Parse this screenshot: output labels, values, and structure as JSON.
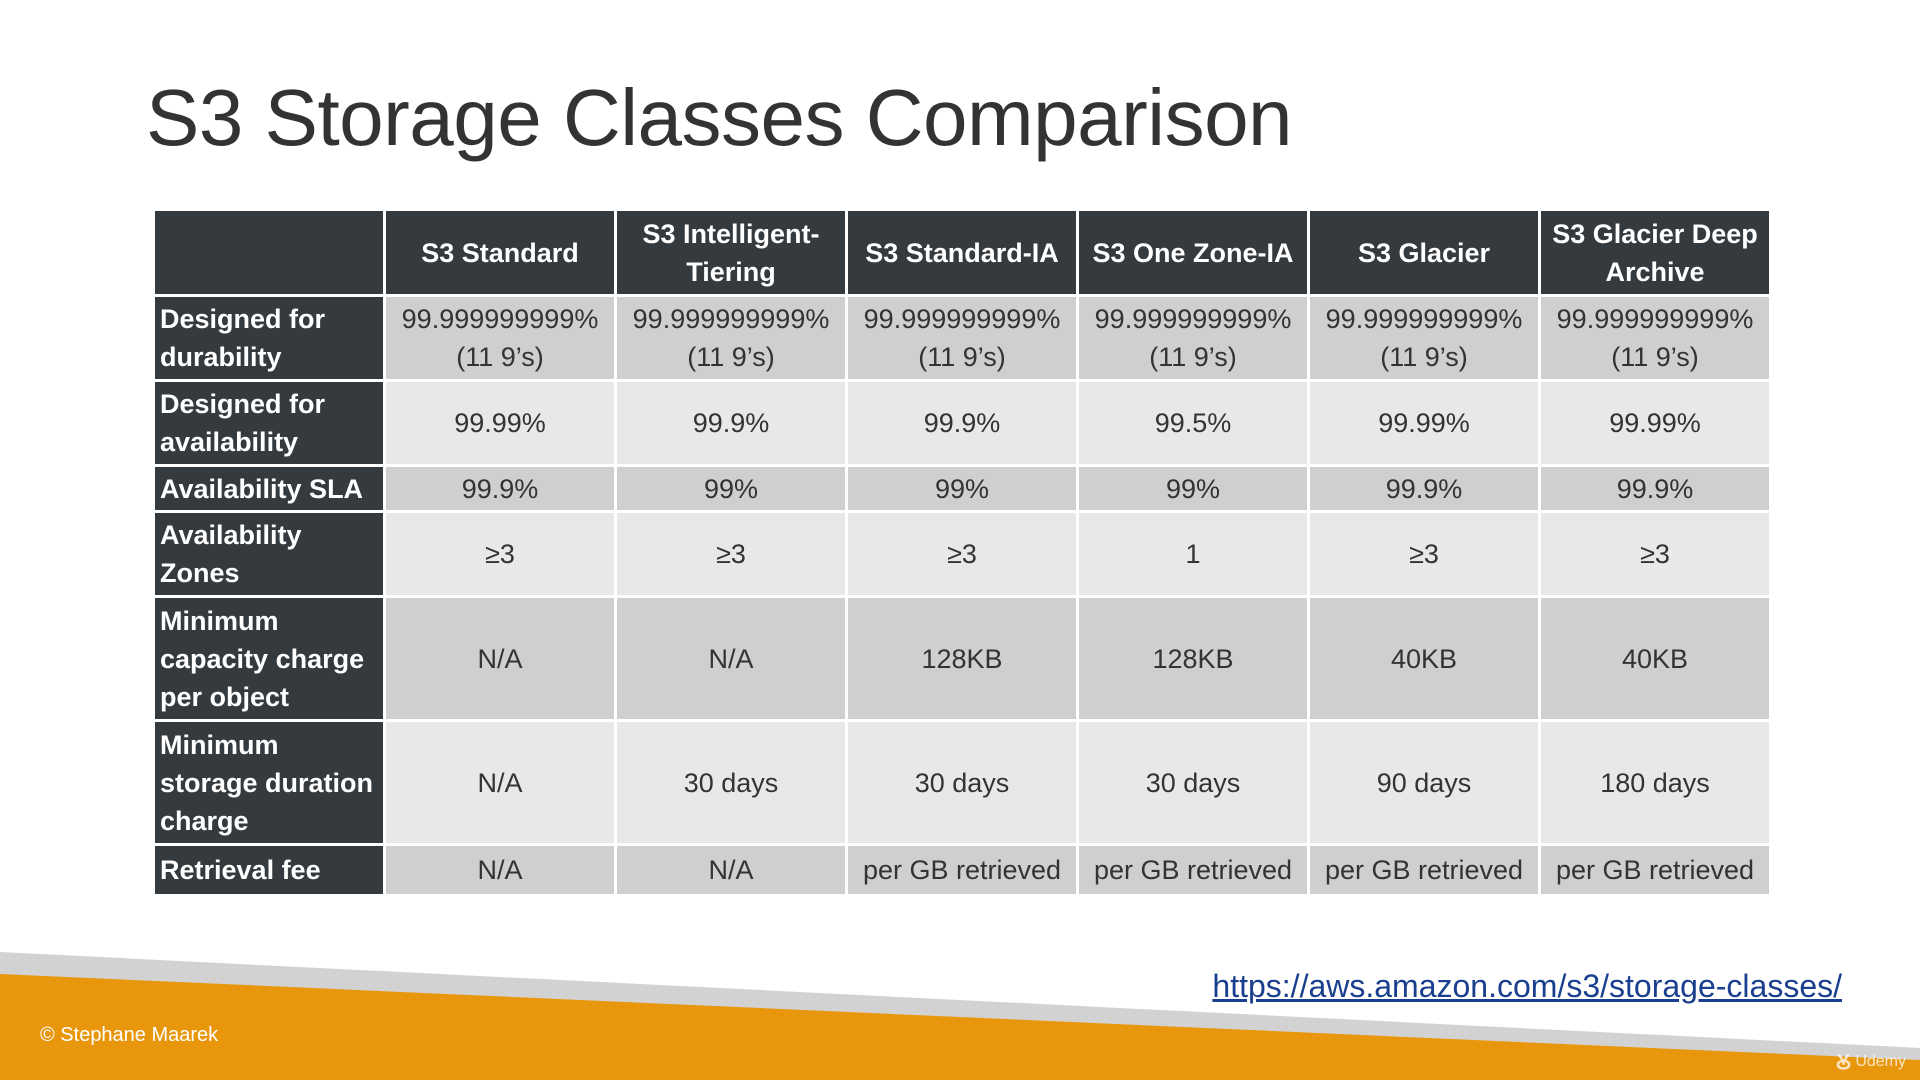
{
  "title": "S3 Storage Classes Comparison",
  "table": {
    "columns": [
      "S3 Standard",
      "S3 Intelligent-Tiering",
      "S3 Standard-IA",
      "S3 One Zone-IA",
      "S3 Glacier",
      "S3 Glacier Deep Archive"
    ],
    "rows": [
      {
        "label": "Designed for durability",
        "cells": [
          "99.999999999% (11 9’s)",
          "99.999999999% (11 9’s)",
          "99.999999999% (11 9’s)",
          "99.999999999% (11 9’s)",
          "99.999999999% (11 9’s)",
          "99.999999999% (11 9’s)"
        ]
      },
      {
        "label": "Designed for availability",
        "cells": [
          "99.99%",
          "99.9%",
          "99.9%",
          "99.5%",
          "99.99%",
          "99.99%"
        ]
      },
      {
        "label": "Availability SLA",
        "cells": [
          "99.9%",
          "99%",
          "99%",
          "99%",
          "99.9%",
          "99.9%"
        ]
      },
      {
        "label": "Availability Zones",
        "cells": [
          "≥3",
          "≥3",
          "≥3",
          "1",
          "≥3",
          "≥3"
        ]
      },
      {
        "label": "Minimum capacity charge per object",
        "cells": [
          "N/A",
          "N/A",
          "128KB",
          "128KB",
          "40KB",
          "40KB"
        ]
      },
      {
        "label": "Minimum storage duration charge",
        "cells": [
          "N/A",
          "30 days",
          "30 days",
          "30 days",
          "90 days",
          "180 days"
        ]
      },
      {
        "label": "Retrieval fee",
        "cells": [
          "N/A",
          "N/A",
          "per GB retrieved",
          "per GB retrieved",
          "per GB retrieved",
          "per GB retrieved"
        ]
      }
    ]
  },
  "link": "https://aws.amazon.com/s3/storage-classes/",
  "copyright": "© Stephane Maarek",
  "watermark": "Udemy",
  "colors": {
    "header_bg": "#343a3e",
    "row_dark": "#cfcfcf",
    "row_light": "#e8e8e8",
    "footer_orange": "#e8970c",
    "link_blue": "#1a3f8f"
  }
}
